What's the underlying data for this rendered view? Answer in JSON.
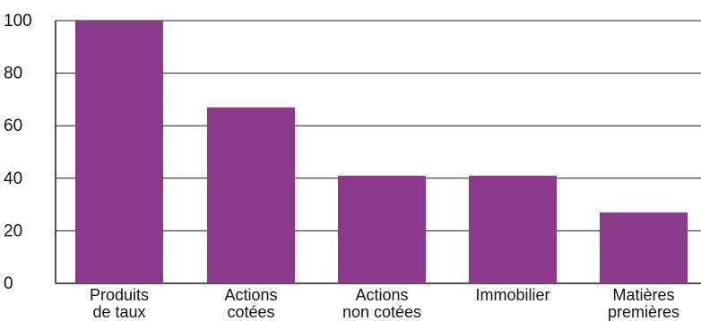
{
  "chart_data": {
    "type": "bar",
    "categories": [
      [
        "Produits",
        "de taux"
      ],
      [
        "Actions",
        "cotées"
      ],
      [
        "Actions",
        "non cotées"
      ],
      [
        "Immobilier"
      ],
      [
        "Matières",
        "premières"
      ]
    ],
    "values": [
      100,
      67,
      41,
      41,
      27
    ],
    "ylim": [
      0,
      100
    ],
    "yticks": [
      0,
      20,
      40,
      60,
      80,
      100
    ],
    "grid": true,
    "bar_color": "#8c3a8a",
    "grid_color": "#1a1a1a"
  }
}
